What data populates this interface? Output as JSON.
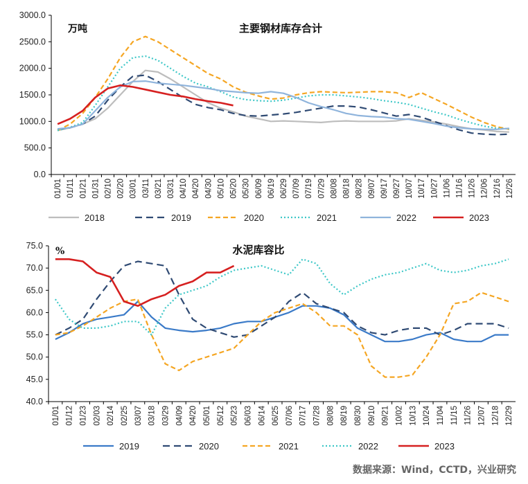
{
  "source_note": "数据来源：Wind，CCTD，兴业研究",
  "chart_data": [
    {
      "type": "line",
      "title": "主要钢材库存合计",
      "unit_label": "万吨",
      "ylim": [
        0,
        3000
      ],
      "yticks": [
        "0.0",
        "500.0",
        "1000.0",
        "1500.0",
        "2000.0",
        "2500.0",
        "3000.0"
      ],
      "ytick_values": [
        0,
        500,
        1000,
        1500,
        2000,
        2500,
        3000
      ],
      "x_ticks": [
        "01/01",
        "01/11",
        "01/21",
        "01/31",
        "02/10",
        "02/20",
        "03/01",
        "03/11",
        "03/21",
        "03/31",
        "04/10",
        "04/20",
        "04/30",
        "05/10",
        "05/20",
        "05/30",
        "06/09",
        "06/19",
        "06/29",
        "07/09",
        "07/19",
        "07/29",
        "08/08",
        "08/18",
        "08/28",
        "09/07",
        "09/17",
        "09/27",
        "10/07",
        "10/17",
        "10/27",
        "11/06",
        "11/16",
        "11/26",
        "12/06",
        "12/16",
        "12/26"
      ],
      "grid": false,
      "legend": "bottom",
      "series": [
        {
          "name": "2018",
          "color": "#bdbdbd",
          "dash": "solid",
          "values": [
            830,
            880,
            950,
            1050,
            1250,
            1500,
            1750,
            1960,
            1930,
            1800,
            1650,
            1500,
            1350,
            1250,
            1180,
            1100,
            1050,
            1000,
            1010,
            1000,
            990,
            980,
            1000,
            1010,
            1000,
            1000,
            1000,
            1010,
            1050,
            1020,
            990,
            950,
            900,
            860,
            840,
            810,
            800
          ]
        },
        {
          "name": "2019",
          "color": "#2f4a73",
          "dash": "long",
          "values": [
            850,
            880,
            950,
            1100,
            1400,
            1650,
            1850,
            1870,
            1750,
            1600,
            1450,
            1320,
            1260,
            1220,
            1150,
            1110,
            1100,
            1120,
            1140,
            1170,
            1210,
            1250,
            1290,
            1290,
            1270,
            1220,
            1160,
            1100,
            1130,
            1080,
            1000,
            920,
            840,
            780,
            760,
            750,
            760
          ]
        },
        {
          "name": "2020",
          "color": "#f5a623",
          "dash": "dash",
          "values": [
            830,
            950,
            1150,
            1450,
            1800,
            2200,
            2500,
            2600,
            2500,
            2350,
            2200,
            2050,
            1900,
            1800,
            1650,
            1550,
            1480,
            1420,
            1440,
            1500,
            1540,
            1560,
            1550,
            1540,
            1550,
            1560,
            1560,
            1540,
            1450,
            1540,
            1430,
            1320,
            1200,
            1080,
            980,
            900,
            850
          ]
        },
        {
          "name": "2021",
          "color": "#3cc7c7",
          "dash": "dot",
          "values": [
            830,
            890,
            980,
            1300,
            1650,
            2000,
            2200,
            2230,
            2150,
            2000,
            1850,
            1720,
            1650,
            1560,
            1460,
            1410,
            1390,
            1380,
            1400,
            1440,
            1480,
            1500,
            1500,
            1480,
            1460,
            1430,
            1390,
            1360,
            1320,
            1250,
            1180,
            1120,
            1040,
            970,
            910,
            870,
            860
          ]
        },
        {
          "name": "2022",
          "color": "#8fb4dc",
          "dash": "solid",
          "values": [
            860,
            880,
            950,
            1200,
            1450,
            1650,
            1750,
            1760,
            1720,
            1700,
            1680,
            1650,
            1620,
            1580,
            1560,
            1540,
            1530,
            1560,
            1530,
            1450,
            1350,
            1280,
            1220,
            1150,
            1110,
            1090,
            1080,
            1050,
            1040,
            1000,
            960,
            910,
            880,
            860,
            850,
            850,
            870
          ]
        },
        {
          "name": "2023",
          "color": "#d62020",
          "dash": "solid",
          "values": [
            950,
            1050,
            1200,
            1450,
            1620,
            1680,
            1650,
            1600,
            1550,
            1500,
            1470,
            1420,
            1380,
            1350,
            1300,
            null,
            null,
            null,
            null,
            null,
            null,
            null,
            null,
            null,
            null,
            null,
            null,
            null,
            null,
            null,
            null,
            null,
            null,
            null,
            null,
            null,
            null
          ]
        }
      ]
    },
    {
      "type": "line",
      "title": "水泥库容比",
      "unit_label": "%",
      "ylim": [
        40,
        75
      ],
      "yticks": [
        "40.0",
        "45.0",
        "50.0",
        "55.0",
        "60.0",
        "65.0",
        "70.0",
        "75.0"
      ],
      "ytick_values": [
        40,
        45,
        50,
        55,
        60,
        65,
        70,
        75
      ],
      "x_ticks": [
        "01/01",
        "01/12",
        "01/23",
        "02/03",
        "02/14",
        "02/25",
        "03/07",
        "03/18",
        "03/29",
        "04/09",
        "04/20",
        "05/01",
        "05/12",
        "05/23",
        "06/03",
        "06/14",
        "06/25",
        "07/06",
        "07/17",
        "07/28",
        "08/08",
        "08/19",
        "08/30",
        "09/10",
        "09/21",
        "10/02",
        "10/13",
        "10/24",
        "11/04",
        "11/15",
        "11/26",
        "12/07",
        "12/18",
        "12/29"
      ],
      "grid": false,
      "legend": "bottom",
      "series": [
        {
          "name": "2019",
          "color": "#3a7ac8",
          "dash": "solid",
          "values": [
            54.0,
            55.5,
            57.5,
            58.5,
            59.0,
            59.5,
            62.5,
            59.0,
            56.5,
            56.0,
            55.7,
            56.0,
            56.5,
            57.5,
            58.0,
            58.0,
            59.0,
            60.0,
            61.5,
            61.5,
            61.0,
            59.5,
            56.5,
            55.0,
            53.5,
            53.5,
            54.0,
            55.0,
            55.5,
            54.0,
            53.5,
            53.5,
            55.0,
            55.0
          ]
        },
        {
          "name": "2020",
          "color": "#2f4a73",
          "dash": "long",
          "values": [
            55.0,
            56.5,
            58.5,
            63.0,
            67.0,
            70.5,
            71.5,
            71.0,
            70.5,
            64.0,
            58.5,
            56.5,
            55.5,
            54.5,
            55.0,
            57.0,
            59.0,
            62.5,
            64.5,
            62.0,
            61.0,
            60.0,
            57.0,
            55.5,
            55.0,
            56.0,
            56.5,
            56.5,
            55.0,
            56.0,
            57.5,
            57.5,
            57.5,
            56.5
          ]
        },
        {
          "name": "2021",
          "color": "#f5a623",
          "dash": "dash",
          "values": [
            55.0,
            55.5,
            57.0,
            59.0,
            61.0,
            62.5,
            63.0,
            55.0,
            48.5,
            47.0,
            49.0,
            50.0,
            51.0,
            52.0,
            55.0,
            58.0,
            60.0,
            61.0,
            62.0,
            60.0,
            57.0,
            57.0,
            55.0,
            48.0,
            45.5,
            45.5,
            46.0,
            50.0,
            55.0,
            62.0,
            62.5,
            64.5,
            63.5,
            62.5
          ]
        },
        {
          "name": "2022",
          "color": "#3cc7c7",
          "dash": "dot",
          "values": [
            63.0,
            58.5,
            56.5,
            56.5,
            57.0,
            58.0,
            58.0,
            55.0,
            61.0,
            64.0,
            65.0,
            66.0,
            68.0,
            69.5,
            70.0,
            70.5,
            69.5,
            68.5,
            72.0,
            71.0,
            66.5,
            64.0,
            66.0,
            67.5,
            68.5,
            69.0,
            70.0,
            71.0,
            69.5,
            69.0,
            69.5,
            70.5,
            71.0,
            72.0
          ]
        },
        {
          "name": "2023",
          "color": "#d62020",
          "dash": "solid",
          "values": [
            72.0,
            72.0,
            71.5,
            69.0,
            68.0,
            62.5,
            61.5,
            63.0,
            64.0,
            66.0,
            67.0,
            69.0,
            69.0,
            70.5,
            null,
            null,
            null,
            null,
            null,
            null,
            null,
            null,
            null,
            null,
            null,
            null,
            null,
            null,
            null,
            null,
            null,
            null,
            null,
            null
          ]
        }
      ]
    }
  ]
}
